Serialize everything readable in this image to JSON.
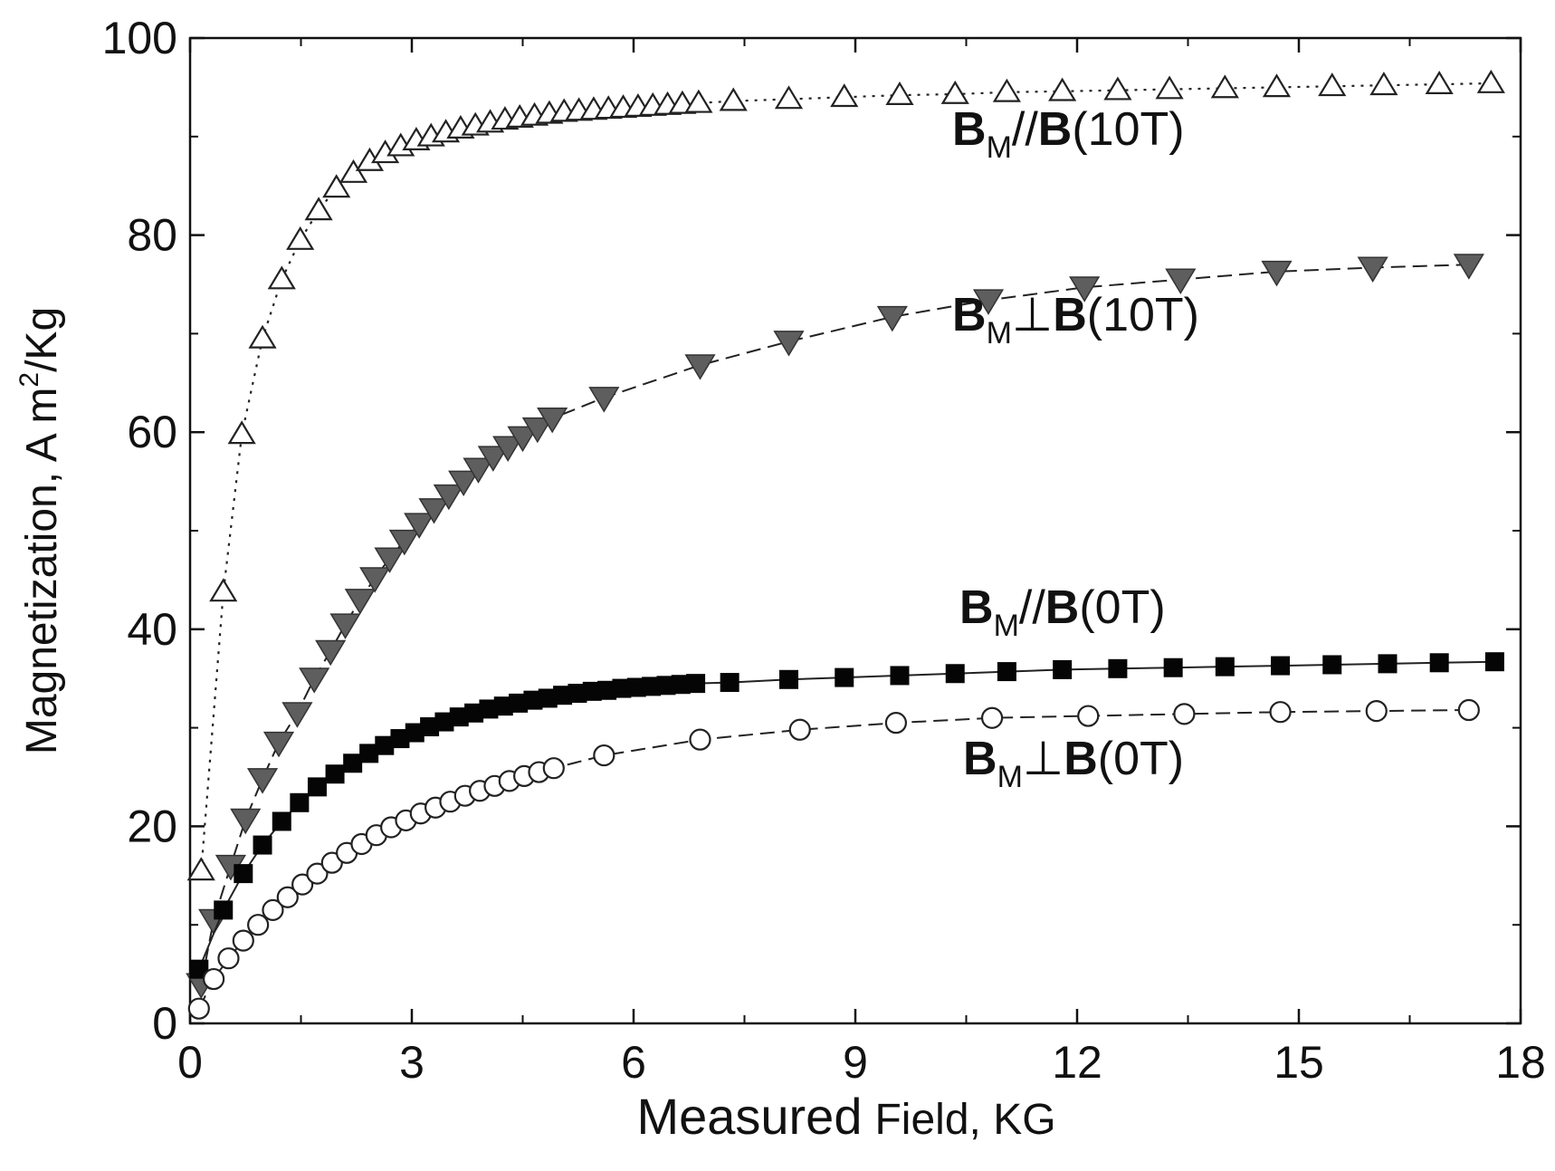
{
  "chart_data": {
    "type": "scatter",
    "xlabel": {
      "main": "Measured",
      "rest": "Field, KG"
    },
    "ylabel": {
      "prefix": "Magnetization, A m",
      "sup": "2",
      "suffix": "/Kg"
    },
    "xlim": [
      0,
      18
    ],
    "ylim": [
      0,
      100
    ],
    "xticks": [
      0,
      3,
      6,
      9,
      12,
      15,
      18
    ],
    "yticks": [
      0,
      20,
      40,
      60,
      80,
      100
    ],
    "grid": false,
    "series": [
      {
        "id": "par10",
        "name": "B_M//B(10T)",
        "label": {
          "b1": "B",
          "sub": "M",
          "rel": "//",
          "b2": "B",
          "cond": "(10T)"
        },
        "marker": "triangle-up-open",
        "line": "dotted",
        "x": [
          0.15,
          0.45,
          0.7,
          0.98,
          1.24,
          1.49,
          1.74,
          1.98,
          2.21,
          2.43,
          2.64,
          2.85,
          3.06,
          3.26,
          3.46,
          3.66,
          3.86,
          4.06,
          4.26,
          4.46,
          4.66,
          4.86,
          5.06,
          5.26,
          5.46,
          5.66,
          5.86,
          6.06,
          6.26,
          6.46,
          6.66,
          6.88,
          7.35,
          8.1,
          8.85,
          9.6,
          10.35,
          11.05,
          11.8,
          12.55,
          13.25,
          14.0,
          14.7,
          15.45,
          16.15,
          16.9,
          17.6
        ],
        "y": [
          15.5,
          43.8,
          59.8,
          69.5,
          75.5,
          79.5,
          82.5,
          84.8,
          86.3,
          87.5,
          88.3,
          89.0,
          89.6,
          90.0,
          90.4,
          90.8,
          91.1,
          91.4,
          91.7,
          91.9,
          92.1,
          92.3,
          92.5,
          92.6,
          92.7,
          92.8,
          92.9,
          93.0,
          93.1,
          93.2,
          93.3,
          93.4,
          93.6,
          93.8,
          94.0,
          94.2,
          94.3,
          94.5,
          94.6,
          94.7,
          94.8,
          94.9,
          95.0,
          95.1,
          95.2,
          95.3,
          95.4
        ]
      },
      {
        "id": "perp10",
        "name": "B_M⊥B(10T)",
        "label": {
          "b1": "B",
          "sub": "M",
          "rel": "⊥",
          "b2": "B",
          "cond": "(10T)"
        },
        "marker": "triangle-down-filled",
        "line": "dashed",
        "x": [
          0.15,
          0.32,
          0.55,
          0.75,
          0.98,
          1.2,
          1.45,
          1.68,
          1.9,
          2.1,
          2.3,
          2.5,
          2.7,
          2.9,
          3.1,
          3.3,
          3.5,
          3.7,
          3.9,
          4.1,
          4.3,
          4.5,
          4.7,
          4.9,
          5.6,
          6.9,
          8.1,
          9.5,
          10.8,
          12.1,
          13.4,
          14.7,
          16.0,
          17.3
        ],
        "y": [
          4.0,
          10.5,
          16.0,
          20.7,
          24.8,
          28.5,
          31.5,
          35.0,
          37.8,
          40.5,
          43.0,
          45.2,
          47.2,
          49.0,
          50.7,
          52.2,
          53.6,
          55.0,
          56.3,
          57.5,
          58.5,
          59.5,
          60.4,
          61.4,
          63.5,
          66.8,
          69.2,
          71.7,
          73.4,
          74.7,
          75.5,
          76.3,
          76.7,
          77.0
        ]
      },
      {
        "id": "par0",
        "name": "B_M//B(0T)",
        "label": {
          "b1": "B",
          "sub": "M",
          "rel": "//",
          "b2": "B",
          "cond": "(0T)"
        },
        "marker": "square-filled",
        "line": "solid",
        "x": [
          0.12,
          0.45,
          0.72,
          0.98,
          1.24,
          1.48,
          1.72,
          1.96,
          2.2,
          2.42,
          2.63,
          2.84,
          3.04,
          3.24,
          3.44,
          3.64,
          3.84,
          4.04,
          4.24,
          4.44,
          4.64,
          4.84,
          5.04,
          5.24,
          5.44,
          5.64,
          5.84,
          6.04,
          6.24,
          6.44,
          6.64,
          6.84,
          7.3,
          8.1,
          8.85,
          9.6,
          10.35,
          11.05,
          11.8,
          12.55,
          13.3,
          14.0,
          14.75,
          15.45,
          16.2,
          16.9,
          17.65
        ],
        "y": [
          5.5,
          11.5,
          15.2,
          18.1,
          20.5,
          22.4,
          24.0,
          25.3,
          26.4,
          27.4,
          28.2,
          28.9,
          29.5,
          30.1,
          30.6,
          31.1,
          31.5,
          31.9,
          32.2,
          32.5,
          32.8,
          33.0,
          33.3,
          33.5,
          33.7,
          33.8,
          34.0,
          34.1,
          34.2,
          34.3,
          34.4,
          34.5,
          34.6,
          34.9,
          35.1,
          35.3,
          35.5,
          35.7,
          35.9,
          36.0,
          36.1,
          36.2,
          36.3,
          36.4,
          36.5,
          36.6,
          36.7
        ]
      },
      {
        "id": "perp0",
        "name": "B_M⊥B(0T)",
        "label": {
          "b1": "B",
          "sub": "M",
          "rel": "⊥",
          "b2": "B",
          "cond": "(0T)"
        },
        "marker": "circle-open",
        "line": "dashed",
        "x": [
          0.12,
          0.32,
          0.52,
          0.72,
          0.92,
          1.12,
          1.32,
          1.52,
          1.72,
          1.92,
          2.12,
          2.32,
          2.52,
          2.72,
          2.92,
          3.12,
          3.32,
          3.52,
          3.72,
          3.92,
          4.12,
          4.32,
          4.52,
          4.72,
          4.92,
          5.6,
          6.9,
          8.25,
          9.55,
          10.85,
          12.15,
          13.45,
          14.75,
          16.05,
          17.3
        ],
        "y": [
          1.5,
          4.5,
          6.6,
          8.4,
          10.0,
          11.5,
          12.8,
          14.1,
          15.2,
          16.3,
          17.3,
          18.2,
          19.1,
          19.9,
          20.6,
          21.3,
          21.9,
          22.5,
          23.1,
          23.6,
          24.1,
          24.6,
          25.1,
          25.5,
          25.9,
          27.2,
          28.8,
          29.8,
          30.5,
          31.0,
          31.2,
          31.4,
          31.6,
          31.7,
          31.8
        ]
      }
    ]
  }
}
